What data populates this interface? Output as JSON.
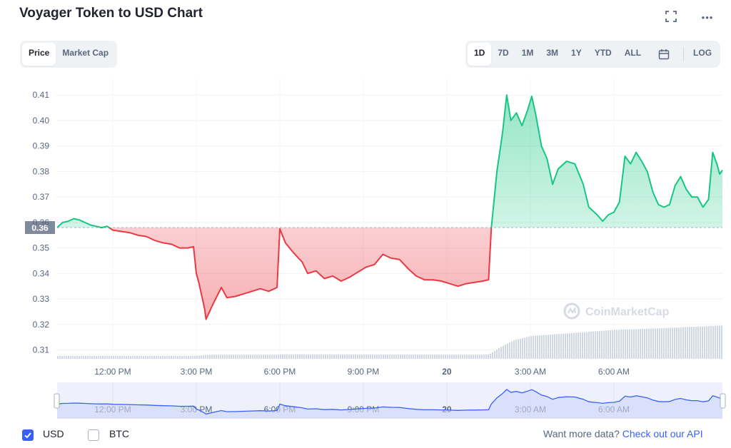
{
  "header": {
    "title": "Voyager Token to USD Chart",
    "fullscreen_icon": "fullscreen-icon",
    "more_icon": "more-icon",
    "more_glyph": "•••"
  },
  "tabs": [
    {
      "label": "Price",
      "active": true
    },
    {
      "label": "Market Cap",
      "active": false
    }
  ],
  "ranges": [
    {
      "label": "1D",
      "active": true
    },
    {
      "label": "7D",
      "active": false
    },
    {
      "label": "1M",
      "active": false
    },
    {
      "label": "3M",
      "active": false
    },
    {
      "label": "1Y",
      "active": false
    },
    {
      "label": "YTD",
      "active": false
    },
    {
      "label": "ALL",
      "active": false
    }
  ],
  "calendar_icon": "calendar-icon",
  "log_label": "LOG",
  "watermark": "CoinMarketCap",
  "footer": {
    "usd_label": "USD",
    "usd_checked": true,
    "btc_label": "BTC",
    "btc_checked": false,
    "more_data_text": "Want more data?",
    "api_link": "Check out our API"
  },
  "colors": {
    "up": "#16c784",
    "down": "#ea3943",
    "accent": "#3861fb",
    "volume": "#cfd6e4"
  },
  "chart_data": {
    "type": "line",
    "xlabel": "",
    "ylabel": "",
    "x_tick_labels": [
      "12:00 PM",
      "3:00 PM",
      "6:00 PM",
      "9:00 PM",
      "20",
      "3:00 AM",
      "6:00 AM"
    ],
    "x_tick_hours": [
      12,
      15,
      18,
      21,
      24,
      27,
      30
    ],
    "y_ticks": [
      0.31,
      0.32,
      0.33,
      0.34,
      0.35,
      0.36,
      0.37,
      0.38,
      0.39,
      0.4,
      0.41
    ],
    "ylim": [
      0.3065,
      0.4165
    ],
    "xlim_hours": [
      10.0,
      33.9
    ],
    "reference_price": 0.358,
    "reference_label": "0.36",
    "grid": true,
    "series": [
      {
        "points": [
          [
            10.0,
            0.358
          ],
          [
            10.2,
            0.36
          ],
          [
            10.4,
            0.3605
          ],
          [
            10.6,
            0.3615
          ],
          [
            10.8,
            0.361
          ],
          [
            11.0,
            0.36
          ],
          [
            11.2,
            0.359
          ],
          [
            11.4,
            0.3585
          ],
          [
            11.6,
            0.358
          ],
          [
            11.8,
            0.3585
          ],
          [
            12.0,
            0.357
          ],
          [
            12.3,
            0.3565
          ],
          [
            12.6,
            0.356
          ],
          [
            12.9,
            0.355
          ],
          [
            13.2,
            0.3545
          ],
          [
            13.5,
            0.353
          ],
          [
            13.8,
            0.352
          ],
          [
            14.1,
            0.3515
          ],
          [
            14.4,
            0.35
          ],
          [
            14.7,
            0.35
          ],
          [
            14.9,
            0.3505
          ],
          [
            15.0,
            0.34
          ],
          [
            15.1,
            0.336
          ],
          [
            15.2,
            0.331
          ],
          [
            15.3,
            0.326
          ],
          [
            15.35,
            0.322
          ],
          [
            15.6,
            0.328
          ],
          [
            15.9,
            0.3345
          ],
          [
            16.1,
            0.3305
          ],
          [
            16.4,
            0.331
          ],
          [
            16.7,
            0.332
          ],
          [
            17.0,
            0.333
          ],
          [
            17.3,
            0.334
          ],
          [
            17.6,
            0.333
          ],
          [
            17.9,
            0.3345
          ],
          [
            18.0,
            0.3575
          ],
          [
            18.2,
            0.352
          ],
          [
            18.5,
            0.348
          ],
          [
            18.8,
            0.3445
          ],
          [
            19.0,
            0.34
          ],
          [
            19.3,
            0.341
          ],
          [
            19.6,
            0.338
          ],
          [
            19.9,
            0.339
          ],
          [
            20.2,
            0.337
          ],
          [
            20.5,
            0.3385
          ],
          [
            20.8,
            0.3405
          ],
          [
            21.1,
            0.3425
          ],
          [
            21.4,
            0.3435
          ],
          [
            21.7,
            0.3475
          ],
          [
            22.0,
            0.346
          ],
          [
            22.3,
            0.3455
          ],
          [
            22.6,
            0.342
          ],
          [
            22.9,
            0.339
          ],
          [
            23.2,
            0.3375
          ],
          [
            23.5,
            0.3375
          ],
          [
            23.8,
            0.337
          ],
          [
            24.1,
            0.336
          ],
          [
            24.4,
            0.335
          ],
          [
            24.7,
            0.336
          ],
          [
            25.0,
            0.3365
          ],
          [
            25.3,
            0.337
          ],
          [
            25.5,
            0.3375
          ],
          [
            25.6,
            0.358
          ],
          [
            25.8,
            0.38
          ],
          [
            26.0,
            0.395
          ],
          [
            26.15,
            0.41
          ],
          [
            26.3,
            0.4
          ],
          [
            26.5,
            0.403
          ],
          [
            26.7,
            0.398
          ],
          [
            26.9,
            0.404
          ],
          [
            27.05,
            0.4095
          ],
          [
            27.2,
            0.402
          ],
          [
            27.4,
            0.39
          ],
          [
            27.6,
            0.385
          ],
          [
            27.8,
            0.375
          ],
          [
            28.0,
            0.381
          ],
          [
            28.3,
            0.384
          ],
          [
            28.6,
            0.383
          ],
          [
            28.9,
            0.375
          ],
          [
            29.1,
            0.366
          ],
          [
            29.4,
            0.363
          ],
          [
            29.6,
            0.3605
          ],
          [
            29.8,
            0.363
          ],
          [
            30.0,
            0.364
          ],
          [
            30.2,
            0.368
          ],
          [
            30.4,
            0.386
          ],
          [
            30.6,
            0.383
          ],
          [
            30.8,
            0.3875
          ],
          [
            31.0,
            0.384
          ],
          [
            31.2,
            0.38
          ],
          [
            31.4,
            0.372
          ],
          [
            31.6,
            0.367
          ],
          [
            31.8,
            0.366
          ],
          [
            32.0,
            0.367
          ],
          [
            32.2,
            0.3745
          ],
          [
            32.4,
            0.378
          ],
          [
            32.6,
            0.373
          ],
          [
            32.8,
            0.37
          ],
          [
            33.0,
            0.37
          ],
          [
            33.2,
            0.366
          ],
          [
            33.4,
            0.369
          ],
          [
            33.55,
            0.3875
          ],
          [
            33.7,
            0.383
          ],
          [
            33.8,
            0.379
          ],
          [
            33.9,
            0.3805
          ]
        ]
      }
    ],
    "volume_series": [
      [
        10.0,
        0.07
      ],
      [
        14.9,
        0.07
      ],
      [
        15.1,
        0.08
      ],
      [
        15.4,
        0.1
      ],
      [
        17.9,
        0.1
      ],
      [
        18.0,
        0.11
      ],
      [
        25.0,
        0.1
      ],
      [
        25.5,
        0.11
      ],
      [
        25.9,
        0.28
      ],
      [
        26.4,
        0.45
      ],
      [
        27.0,
        0.55
      ],
      [
        28.0,
        0.6
      ],
      [
        29.0,
        0.65
      ],
      [
        30.0,
        0.7
      ],
      [
        31.0,
        0.72
      ],
      [
        32.0,
        0.75
      ],
      [
        33.0,
        0.78
      ],
      [
        33.9,
        0.8
      ]
    ],
    "navigator": {
      "x_tick_labels": [
        "12:00 PM",
        "3:00 PM",
        "6:00 PM",
        "9:00 PM",
        "20",
        "3:00 AM",
        "6:00 AM"
      ]
    }
  }
}
